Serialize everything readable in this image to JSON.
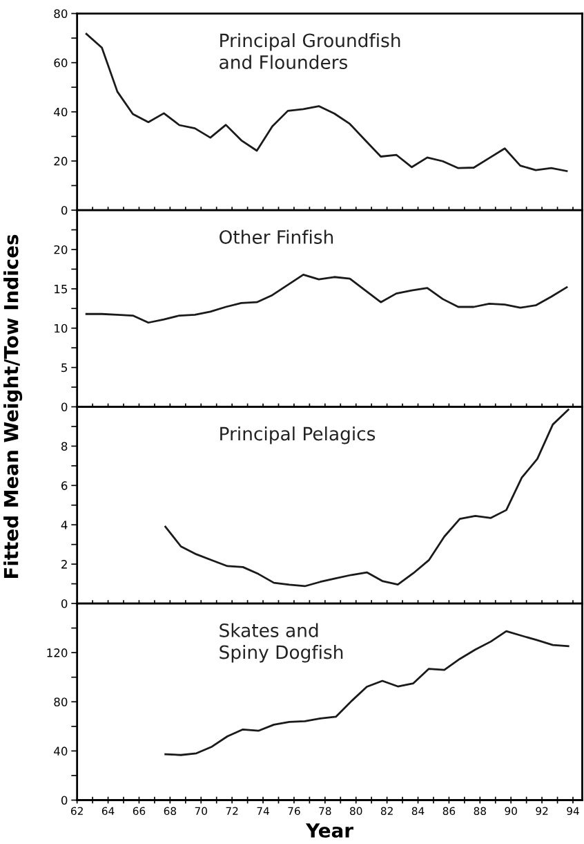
{
  "chart_data": [
    {
      "type": "line",
      "title": "Principal Groundfish\nand Flounders",
      "ylabel": "Fitted Mean Weight/Tow Indices",
      "tick_labels": "y",
      "grid": false,
      "legend": false,
      "marker": "none",
      "line_style": "solid",
      "xlim": [
        62,
        94.6
      ],
      "ylim": [
        0,
        80
      ],
      "xticks": [
        {
          "value": 62,
          "label": null
        },
        {
          "value": 63,
          "label": null
        },
        {
          "value": 64,
          "label": null
        },
        {
          "value": 65,
          "label": null
        },
        {
          "value": 66,
          "label": null
        },
        {
          "value": 67,
          "label": null
        },
        {
          "value": 68,
          "label": null
        },
        {
          "value": 69,
          "label": null
        },
        {
          "value": 70,
          "label": null
        },
        {
          "value": 71,
          "label": null
        },
        {
          "value": 72,
          "label": null
        },
        {
          "value": 73,
          "label": null
        },
        {
          "value": 74,
          "label": null
        },
        {
          "value": 75,
          "label": null
        },
        {
          "value": 76,
          "label": null
        },
        {
          "value": 77,
          "label": null
        },
        {
          "value": 78,
          "label": null
        },
        {
          "value": 79,
          "label": null
        },
        {
          "value": 80,
          "label": null
        },
        {
          "value": 81,
          "label": null
        },
        {
          "value": 82,
          "label": null
        },
        {
          "value": 83,
          "label": null
        },
        {
          "value": 84,
          "label": null
        },
        {
          "value": 85,
          "label": null
        },
        {
          "value": 86,
          "label": null
        },
        {
          "value": 87,
          "label": null
        },
        {
          "value": 88,
          "label": null
        },
        {
          "value": 89,
          "label": null
        },
        {
          "value": 90,
          "label": null
        },
        {
          "value": 91,
          "label": null
        },
        {
          "value": 92,
          "label": null
        },
        {
          "value": 93,
          "label": null
        },
        {
          "value": 94,
          "label": null
        }
      ],
      "yticks": [
        0,
        {
          "value": 10,
          "label": null
        },
        20,
        {
          "value": 30,
          "label": null
        },
        40,
        {
          "value": 50,
          "label": null
        },
        60,
        {
          "value": 70,
          "label": null
        },
        80
      ],
      "x": [
        62.6,
        63.6,
        64.6,
        65.6,
        66.6,
        67.6,
        68.6,
        69.6,
        70.6,
        71.6,
        72.6,
        73.6,
        74.6,
        75.6,
        76.6,
        77.6,
        78.6,
        79.6,
        80.6,
        81.6,
        82.6,
        83.6,
        84.6,
        85.6,
        86.6,
        87.6,
        88.6,
        89.6,
        90.6,
        91.6,
        92.6,
        93.6
      ],
      "series": [
        {
          "color": "#1a1a1a",
          "values": [
            71.7,
            66.1,
            48.2,
            39.1,
            35.8,
            39.4,
            34.6,
            33.3,
            29.5,
            34.7,
            28.4,
            24.2,
            34.1,
            40.4,
            41.1,
            42.3,
            39.3,
            35.1,
            28.4,
            21.8,
            22.5,
            17.5,
            21.4,
            19.9,
            17.1,
            17.3,
            21.2,
            25.1,
            18.1,
            16.3,
            17.1,
            15.9
          ]
        }
      ]
    },
    {
      "type": "line",
      "title": "Other Finfish",
      "tick_labels": "y",
      "grid": false,
      "legend": false,
      "marker": "none",
      "line_style": "solid",
      "xlim": [
        62,
        94.6
      ],
      "ylim": [
        0,
        25
      ],
      "xticks": [
        {
          "value": 62,
          "label": null
        },
        {
          "value": 63,
          "label": null
        },
        {
          "value": 64,
          "label": null
        },
        {
          "value": 65,
          "label": null
        },
        {
          "value": 66,
          "label": null
        },
        {
          "value": 67,
          "label": null
        },
        {
          "value": 68,
          "label": null
        },
        {
          "value": 69,
          "label": null
        },
        {
          "value": 70,
          "label": null
        },
        {
          "value": 71,
          "label": null
        },
        {
          "value": 72,
          "label": null
        },
        {
          "value": 73,
          "label": null
        },
        {
          "value": 74,
          "label": null
        },
        {
          "value": 75,
          "label": null
        },
        {
          "value": 76,
          "label": null
        },
        {
          "value": 77,
          "label": null
        },
        {
          "value": 78,
          "label": null
        },
        {
          "value": 79,
          "label": null
        },
        {
          "value": 80,
          "label": null
        },
        {
          "value": 81,
          "label": null
        },
        {
          "value": 82,
          "label": null
        },
        {
          "value": 83,
          "label": null
        },
        {
          "value": 84,
          "label": null
        },
        {
          "value": 85,
          "label": null
        },
        {
          "value": 86,
          "label": null
        },
        {
          "value": 87,
          "label": null
        },
        {
          "value": 88,
          "label": null
        },
        {
          "value": 89,
          "label": null
        },
        {
          "value": 90,
          "label": null
        },
        {
          "value": 91,
          "label": null
        },
        {
          "value": 92,
          "label": null
        },
        {
          "value": 93,
          "label": null
        },
        {
          "value": 94,
          "label": null
        }
      ],
      "yticks": [
        0,
        {
          "value": 2.5,
          "label": null
        },
        5,
        {
          "value": 7.5,
          "label": null
        },
        10,
        {
          "value": 12.5,
          "label": null
        },
        15,
        {
          "value": 17.5,
          "label": null
        },
        20,
        {
          "value": 22.5,
          "label": null
        }
      ],
      "x": [
        62.6,
        63.6,
        64.6,
        65.6,
        66.6,
        67.6,
        68.6,
        69.6,
        70.6,
        71.6,
        72.6,
        73.6,
        74.6,
        75.6,
        76.6,
        77.6,
        78.6,
        79.6,
        80.6,
        81.6,
        82.6,
        83.6,
        84.6,
        85.6,
        86.6,
        87.6,
        88.6,
        89.6,
        90.6,
        91.6,
        92.6,
        93.6
      ],
      "series": [
        {
          "color": "#1a1a1a",
          "values": [
            11.8,
            11.8,
            11.7,
            11.6,
            10.7,
            11.1,
            11.6,
            11.7,
            12.1,
            12.7,
            13.2,
            13.3,
            14.2,
            15.5,
            16.8,
            16.2,
            16.5,
            16.3,
            14.8,
            13.3,
            14.4,
            14.8,
            15.1,
            13.7,
            12.7,
            12.7,
            13.1,
            13.0,
            12.6,
            12.9,
            14.0,
            15.2
          ]
        }
      ]
    },
    {
      "type": "line",
      "title": "Principal Pelagics",
      "tick_labels": "y",
      "grid": false,
      "legend": false,
      "marker": "none",
      "line_style": "solid",
      "xlim": [
        62,
        94.6
      ],
      "ylim": [
        0,
        10
      ],
      "xticks": [
        {
          "value": 62,
          "label": null
        },
        {
          "value": 63,
          "label": null
        },
        {
          "value": 64,
          "label": null
        },
        {
          "value": 65,
          "label": null
        },
        {
          "value": 66,
          "label": null
        },
        {
          "value": 67,
          "label": null
        },
        {
          "value": 68,
          "label": null
        },
        {
          "value": 69,
          "label": null
        },
        {
          "value": 70,
          "label": null
        },
        {
          "value": 71,
          "label": null
        },
        {
          "value": 72,
          "label": null
        },
        {
          "value": 73,
          "label": null
        },
        {
          "value": 74,
          "label": null
        },
        {
          "value": 75,
          "label": null
        },
        {
          "value": 76,
          "label": null
        },
        {
          "value": 77,
          "label": null
        },
        {
          "value": 78,
          "label": null
        },
        {
          "value": 79,
          "label": null
        },
        {
          "value": 80,
          "label": null
        },
        {
          "value": 81,
          "label": null
        },
        {
          "value": 82,
          "label": null
        },
        {
          "value": 83,
          "label": null
        },
        {
          "value": 84,
          "label": null
        },
        {
          "value": 85,
          "label": null
        },
        {
          "value": 86,
          "label": null
        },
        {
          "value": 87,
          "label": null
        },
        {
          "value": 88,
          "label": null
        },
        {
          "value": 89,
          "label": null
        },
        {
          "value": 90,
          "label": null
        },
        {
          "value": 91,
          "label": null
        },
        {
          "value": 92,
          "label": null
        },
        {
          "value": 93,
          "label": null
        },
        {
          "value": 94,
          "label": null
        }
      ],
      "yticks": [
        0,
        {
          "value": 1,
          "label": null
        },
        2,
        {
          "value": 3,
          "label": null
        },
        4,
        {
          "value": 5,
          "label": null
        },
        6,
        {
          "value": 7,
          "label": null
        },
        8,
        {
          "value": 9,
          "label": null
        }
      ],
      "x": [
        67.7,
        68.7,
        69.7,
        70.7,
        71.7,
        72.7,
        73.7,
        74.7,
        75.7,
        76.7,
        77.7,
        78.7,
        79.7,
        80.7,
        81.7,
        82.7,
        83.7,
        84.7,
        85.7,
        86.7,
        87.7,
        88.7,
        89.7,
        90.7,
        91.7,
        92.7,
        93.7
      ],
      "series": [
        {
          "color": "#1a1a1a",
          "values": [
            3.9,
            2.9,
            2.5,
            2.2,
            1.9,
            1.85,
            1.5,
            1.05,
            0.95,
            0.88,
            1.1,
            1.28,
            1.45,
            1.58,
            1.14,
            0.96,
            1.54,
            2.2,
            3.4,
            4.3,
            4.45,
            4.35,
            4.75,
            6.4,
            7.35,
            9.1,
            9.85
          ]
        }
      ]
    },
    {
      "type": "line",
      "title": "Skates and\nSpiny Dogfish",
      "xlabel": "Year",
      "grid": false,
      "legend": false,
      "marker": "none",
      "line_style": "solid",
      "xlim": [
        62,
        94.6
      ],
      "ylim": [
        0,
        160
      ],
      "xticks": [
        62,
        {
          "value": 63,
          "label": null
        },
        64,
        {
          "value": 65,
          "label": null
        },
        66,
        {
          "value": 67,
          "label": null
        },
        68,
        {
          "value": 69,
          "label": null
        },
        70,
        {
          "value": 71,
          "label": null
        },
        72,
        {
          "value": 73,
          "label": null
        },
        74,
        {
          "value": 75,
          "label": null
        },
        76,
        {
          "value": 77,
          "label": null
        },
        78,
        {
          "value": 79,
          "label": null
        },
        80,
        {
          "value": 81,
          "label": null
        },
        82,
        {
          "value": 83,
          "label": null
        },
        84,
        {
          "value": 85,
          "label": null
        },
        86,
        {
          "value": 87,
          "label": null
        },
        88,
        {
          "value": 89,
          "label": null
        },
        90,
        {
          "value": 91,
          "label": null
        },
        92,
        {
          "value": 93,
          "label": null
        },
        94
      ],
      "yticks": [
        0,
        {
          "value": 20,
          "label": null
        },
        40,
        {
          "value": 60,
          "label": null
        },
        80,
        {
          "value": 100,
          "label": null
        },
        120,
        {
          "value": 140,
          "label": null
        }
      ],
      "x": [
        67.7,
        68.7,
        69.7,
        70.7,
        71.7,
        72.7,
        73.7,
        74.7,
        75.7,
        76.7,
        77.7,
        78.7,
        79.7,
        80.7,
        81.7,
        82.7,
        83.7,
        84.7,
        85.7,
        86.7,
        87.7,
        88.7,
        89.7,
        90.7,
        91.7,
        92.7,
        93.7
      ],
      "series": [
        {
          "color": "#1a1a1a",
          "values": [
            37.3,
            36.7,
            38.1,
            43.5,
            51.9,
            57.5,
            56.4,
            61.4,
            63.6,
            64.2,
            66.4,
            67.8,
            80.5,
            92.2,
            97.0,
            92.5,
            95.0,
            106.8,
            106.0,
            114.9,
            122.5,
            129.0,
            137.4,
            133.7,
            130.1,
            126.2,
            125.3
          ]
        }
      ]
    }
  ]
}
